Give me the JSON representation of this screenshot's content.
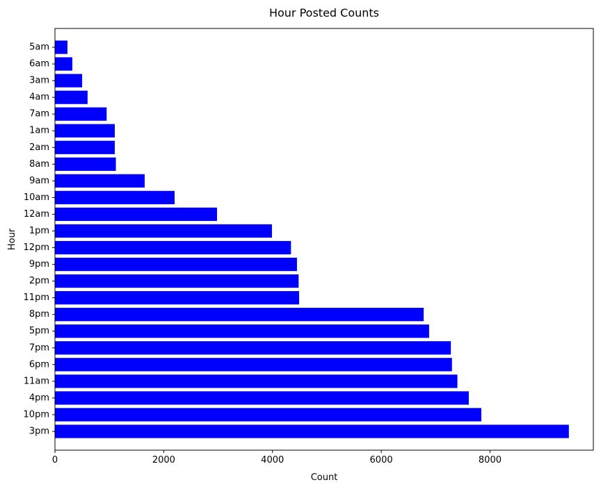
{
  "chart_data": {
    "type": "bar",
    "orientation": "horizontal",
    "title": "Hour Posted Counts",
    "xlabel": "Count",
    "ylabel": "Hour",
    "xlim": [
      0,
      9900
    ],
    "xticks": [
      0,
      2000,
      4000,
      6000,
      8000
    ],
    "grid": false,
    "bar_color": "#0000ff",
    "categories": [
      "3pm",
      "10pm",
      "4pm",
      "11am",
      "6pm",
      "7pm",
      "5pm",
      "8pm",
      "11pm",
      "2pm",
      "9pm",
      "12pm",
      "1pm",
      "12am",
      "10am",
      "9am",
      "8am",
      "2am",
      "1am",
      "7am",
      "4am",
      "3am",
      "6am",
      "5am"
    ],
    "values": [
      9450,
      7840,
      7610,
      7400,
      7300,
      7280,
      6880,
      6780,
      4490,
      4480,
      4450,
      4340,
      3990,
      2980,
      2200,
      1650,
      1120,
      1100,
      1100,
      950,
      600,
      500,
      320,
      230
    ]
  }
}
